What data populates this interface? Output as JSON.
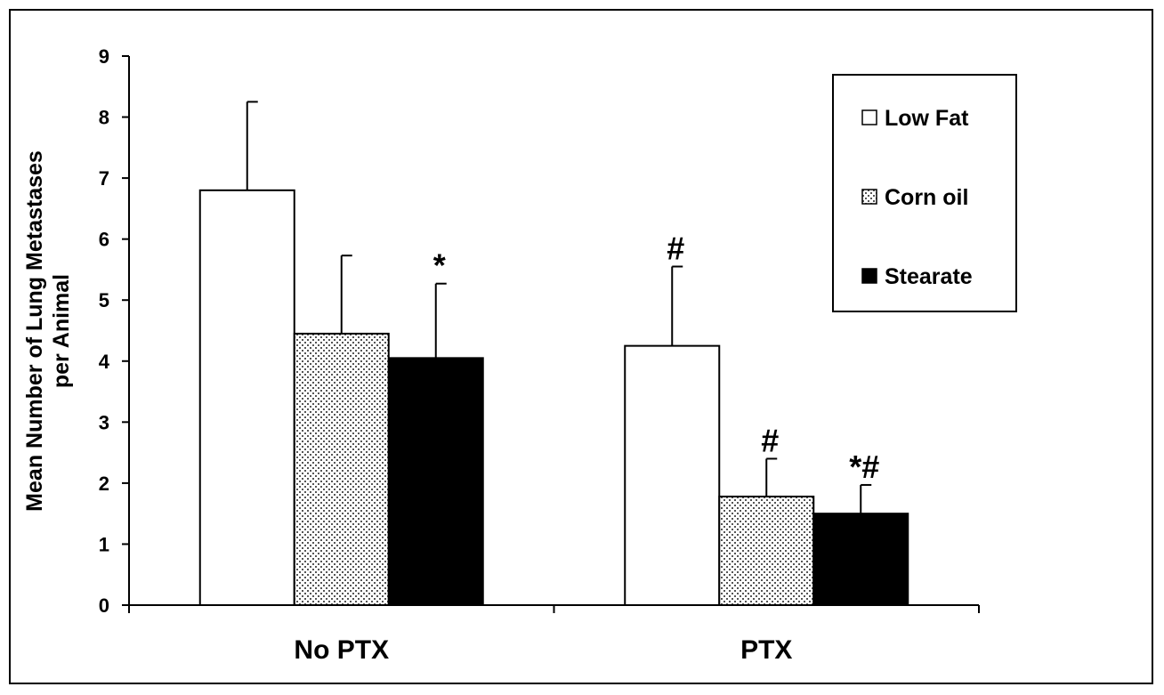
{
  "chart_data": {
    "type": "bar",
    "categories": [
      "No PTX",
      "PTX"
    ],
    "ylabel_line1": "Mean Number of Lung Metastases",
    "ylabel_line2": "per Animal",
    "ylim": [
      0,
      9
    ],
    "yticks": [
      "0",
      "1",
      "2",
      "3",
      "4",
      "5",
      "6",
      "7",
      "8",
      "9"
    ],
    "grid": false,
    "legend_position": "top-right",
    "series": [
      {
        "name": "Low Fat",
        "pattern": "white",
        "values": [
          6.8,
          4.25
        ],
        "errors": [
          1.45,
          1.3
        ],
        "annotations": [
          "",
          "#"
        ]
      },
      {
        "name": "Corn oil",
        "pattern": "dotted",
        "values": [
          4.45,
          1.78
        ],
        "errors": [
          1.28,
          0.62
        ],
        "annotations": [
          "",
          "#"
        ]
      },
      {
        "name": "Stearate",
        "pattern": "black",
        "values": [
          4.05,
          1.5
        ],
        "errors": [
          1.22,
          0.47
        ],
        "annotations": [
          "*",
          "*#"
        ]
      }
    ]
  }
}
